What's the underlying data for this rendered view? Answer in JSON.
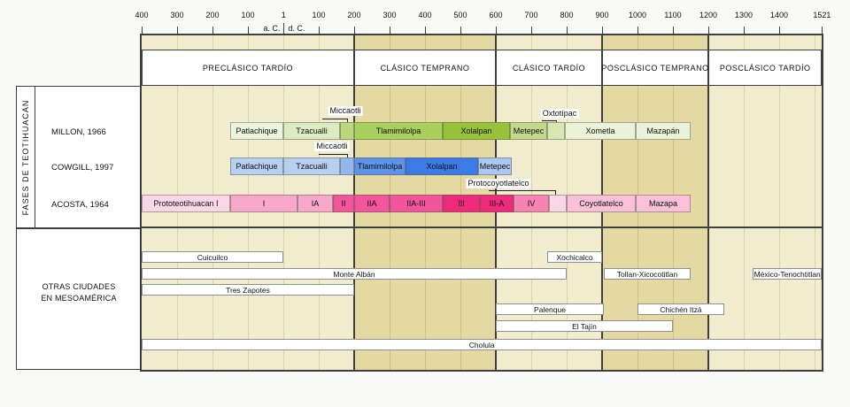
{
  "chart_data": {
    "type": "bar",
    "variant": "chronological-timeline-gantt",
    "title": "",
    "x_axis": {
      "unit": "year",
      "range": [
        -400,
        1521
      ],
      "tick_years": [
        -400,
        -300,
        -200,
        -100,
        1,
        100,
        200,
        300,
        400,
        500,
        600,
        700,
        800,
        900,
        1000,
        1100,
        1200,
        1300,
        1400,
        1521
      ],
      "era_labels": {
        "left": "a. C.",
        "right": "d. C."
      },
      "gridline_years": [
        -300,
        -200,
        -100,
        1,
        100,
        300,
        400,
        500,
        700,
        800,
        1000,
        1100,
        1300,
        1400,
        1500
      ],
      "boundary_years": [
        200,
        600,
        900,
        1200
      ]
    },
    "periods": [
      {
        "label": "PRECLÁSICO TARDÍO",
        "start": -400,
        "end": 200,
        "shade": "light"
      },
      {
        "label": "CLÁSICO TEMPRANO",
        "start": 200,
        "end": 600,
        "shade": "dark"
      },
      {
        "label": "CLÁSICO TARDÍO",
        "start": 600,
        "end": 900,
        "shade": "light"
      },
      {
        "label": "POSCLÁSICO TEMPRANO",
        "start": 900,
        "end": 1200,
        "shade": "dark"
      },
      {
        "label": "POSCLÁSICO TARDÍO",
        "start": 1200,
        "end": 1521,
        "shade": "light"
      }
    ],
    "left_panel": {
      "fases_title": "FASES DE TEOTIHUACAN",
      "otras_line1": "OTRAS CIUDADES",
      "otras_line2": "EN MESOAMÉRICA"
    },
    "phase_rows": [
      {
        "key": "millon",
        "author": "MILLON, 1966",
        "segments": [
          {
            "name": "Patlachique",
            "start": -150,
            "end": 0,
            "color": "#ecf3de"
          },
          {
            "name": "Tzacualli",
            "start": 0,
            "end": 160,
            "color": "#dcebc2"
          },
          {
            "name": "Miccaotli",
            "start": 160,
            "end": 200,
            "color": "#bcd77e",
            "callout": true
          },
          {
            "name": "Tlamimilolpa",
            "start": 200,
            "end": 450,
            "color": "#a9cf5e"
          },
          {
            "name": "Xolalpan",
            "start": 450,
            "end": 640,
            "color": "#97c23a"
          },
          {
            "name": "Metepec",
            "start": 640,
            "end": 745,
            "color": "#c2d98c"
          },
          {
            "name": "Oxtotípac",
            "start": 745,
            "end": 795,
            "color": "#d8e6b2",
            "callout": true
          },
          {
            "name": "Xometla",
            "start": 795,
            "end": 995,
            "color": "#eaf2da"
          },
          {
            "name": "Mazapán",
            "start": 995,
            "end": 1150,
            "color": "#eaf2da"
          }
        ]
      },
      {
        "key": "cowgill",
        "author": "COWGILL, 1997",
        "segments": [
          {
            "name": "Patlachique",
            "start": -150,
            "end": 0,
            "color": "#b7d0f2"
          },
          {
            "name": "Tzacualli",
            "start": 0,
            "end": 160,
            "color": "#b7d0f2"
          },
          {
            "name": "Miccaotli",
            "start": 160,
            "end": 200,
            "color": "#93b6ec",
            "callout": true
          },
          {
            "name": "Tlamimilolpa",
            "start": 200,
            "end": 345,
            "color": "#5c92ea"
          },
          {
            "name": "Xolalpan",
            "start": 345,
            "end": 550,
            "color": "#3c7ae6"
          },
          {
            "name": "Metepec",
            "start": 550,
            "end": 645,
            "color": "#abc8f2"
          }
        ]
      },
      {
        "key": "acosta",
        "author": "ACOSTA, 1964",
        "segments": [
          {
            "name": "Prototeotihuacan I",
            "start": -400,
            "end": -150,
            "color": "#fad7e6"
          },
          {
            "name": "I",
            "start": -150,
            "end": 40,
            "color": "#f8a9cb"
          },
          {
            "name": "IA",
            "start": 40,
            "end": 140,
            "color": "#f8a9cb"
          },
          {
            "name": "II",
            "start": 140,
            "end": 200,
            "color": "#f2559c"
          },
          {
            "name": "IIA",
            "start": 200,
            "end": 300,
            "color": "#f2559c"
          },
          {
            "name": "IIA-III",
            "start": 300,
            "end": 450,
            "color": "#f2559c"
          },
          {
            "name": "III",
            "start": 450,
            "end": 555,
            "color": "#ee2a7c"
          },
          {
            "name": "III-A",
            "start": 555,
            "end": 650,
            "color": "#ee2a7c"
          },
          {
            "name": "IV",
            "start": 650,
            "end": 750,
            "color": "#f584b4"
          },
          {
            "name": "Protocoyotlatelco",
            "start": 750,
            "end": 800,
            "color": "#fad7e6",
            "callout": true
          },
          {
            "name": "Coyotlatelco",
            "start": 800,
            "end": 995,
            "color": "#f9c0d8"
          },
          {
            "name": "Mazapa",
            "start": 995,
            "end": 1150,
            "color": "#f9c0d8"
          }
        ]
      }
    ],
    "other_cities": {
      "lanes": [
        [
          {
            "name": "Cuicuilco",
            "start": -400,
            "end": 0
          },
          {
            "name": "Xochicalco",
            "start": 745,
            "end": 900
          }
        ],
        [
          {
            "name": "Monte Albán",
            "start": -400,
            "end": 800
          },
          {
            "name": "Tollan-Xicocotitlan",
            "start": 905,
            "end": 1150
          },
          {
            "name": "México-Tenochtitlan",
            "start": 1325,
            "end": 1521
          }
        ],
        [
          {
            "name": "Tres Zapotes",
            "start": -400,
            "end": 200
          }
        ],
        [
          {
            "name": "Palenque",
            "start": 600,
            "end": 905
          },
          {
            "name": "Chichén Itzá",
            "start": 1000,
            "end": 1245
          }
        ],
        [
          {
            "name": "El Tajín",
            "start": 600,
            "end": 1100
          }
        ],
        [
          {
            "name": "Cholula",
            "start": -400,
            "end": 1521
          }
        ]
      ]
    },
    "colors": {
      "band_light": "#f2ecce",
      "band_dark": "#e4d9a2",
      "grid_light": "#dcd2a6",
      "grid_dark": "#cfc17e",
      "line_dark": "#3f3f3f",
      "page_bg": "#f9f9f7",
      "city_bar_fill": "#ffffff",
      "city_bar_border": "#8f8f8f"
    }
  }
}
